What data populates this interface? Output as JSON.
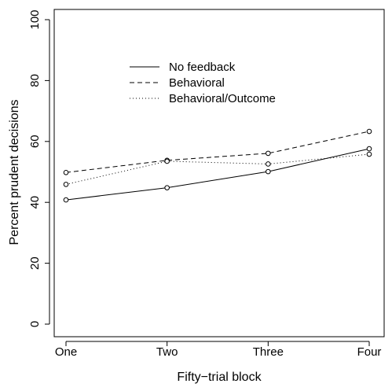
{
  "chart_data": {
    "type": "line",
    "xlabel": "Fifty−trial block",
    "ylabel": "Percent prudent decisions",
    "categories": [
      "One",
      "Two",
      "Three",
      "Four"
    ],
    "ylim": [
      0,
      100
    ],
    "yticks": [
      "0",
      "20",
      "40",
      "60",
      "80",
      "100"
    ],
    "legend_position": "top-left",
    "series": [
      {
        "name": "No feedback",
        "line_style": "solid",
        "values": [
          40.8,
          44.8,
          50.1,
          57.6
        ]
      },
      {
        "name": "Behavioral",
        "line_style": "dashed",
        "values": [
          49.8,
          53.8,
          56.1,
          63.3
        ]
      },
      {
        "name": "Behavioral/Outcome",
        "line_style": "dotted",
        "values": [
          45.9,
          53.5,
          52.6,
          55.8
        ]
      }
    ],
    "marker": "open-circle",
    "color": "#000000"
  }
}
